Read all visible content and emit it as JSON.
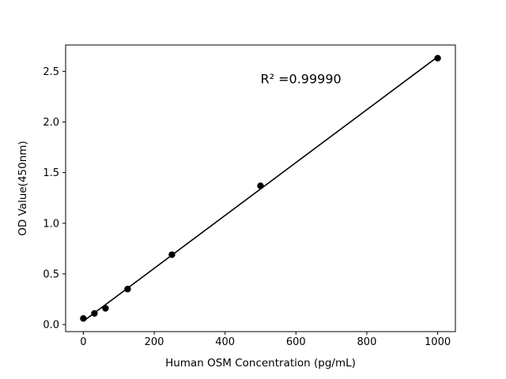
{
  "chart_data": {
    "type": "scatter",
    "x": [
      0,
      31.25,
      62.5,
      125,
      250,
      500,
      1000
    ],
    "y": [
      0.06,
      0.11,
      0.16,
      0.35,
      0.69,
      1.37,
      2.63
    ],
    "title": "",
    "xlabel": "Human OSM Concentration (pg/mL)",
    "ylabel": "OD Value(450nm)",
    "annotation": "R² =0.99990",
    "annotation_pos": {
      "x": 500,
      "y": 2.38
    },
    "xlim": [
      -50,
      1050
    ],
    "ylim": [
      -0.07,
      2.76
    ],
    "xticks": [
      0,
      200,
      400,
      600,
      800,
      1000
    ],
    "xtick_labels": [
      "0",
      "200",
      "400",
      "600",
      "800",
      "1000"
    ],
    "yticks": [
      0.0,
      0.5,
      1.0,
      1.5,
      2.0,
      2.5
    ],
    "ytick_labels": [
      "0.0",
      "0.5",
      "1.0",
      "1.5",
      "2.0",
      "2.5"
    ],
    "grid": false,
    "show_fit_line": true,
    "legend": null,
    "marker_color": "#000000",
    "line_color": "#000000",
    "background_color": "#ffffff",
    "axis_color": "#000000"
  }
}
